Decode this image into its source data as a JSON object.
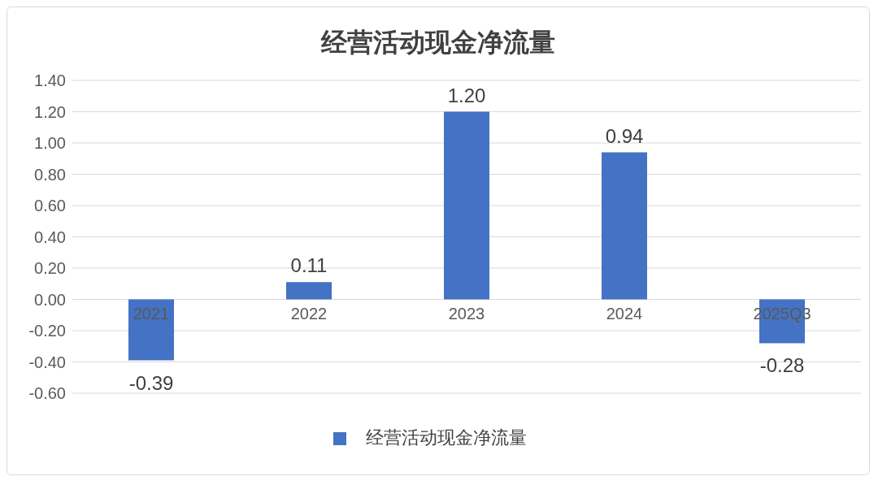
{
  "chart_data": {
    "type": "bar",
    "title": "经营活动现金净流量",
    "categories": [
      "2021",
      "2022",
      "2023",
      "2024",
      "2025Q3"
    ],
    "series": [
      {
        "name": "经营活动现金净流量",
        "color": "#4472c4",
        "values": [
          -0.39,
          0.11,
          1.2,
          0.94,
          -0.28
        ],
        "value_labels": [
          "-0.39",
          "0.11",
          "1.20",
          "0.94",
          "-0.28"
        ]
      }
    ],
    "ylim": [
      -0.6,
      1.4
    ],
    "yticks": [
      {
        "value": -0.6,
        "label": "-0.60"
      },
      {
        "value": -0.4,
        "label": "-0.40"
      },
      {
        "value": -0.2,
        "label": "-0.20"
      },
      {
        "value": 0,
        "label": "0.00"
      },
      {
        "value": 0.2,
        "label": "0.20"
      },
      {
        "value": 0.4,
        "label": "0.40"
      },
      {
        "value": 0.6,
        "label": "0.60"
      },
      {
        "value": 0.8,
        "label": "0.80"
      },
      {
        "value": 1,
        "label": "1.00"
      },
      {
        "value": 1.2,
        "label": "1.20"
      },
      {
        "value": 1.4,
        "label": "1.40"
      }
    ],
    "grid": "y",
    "legend": "bottom"
  }
}
